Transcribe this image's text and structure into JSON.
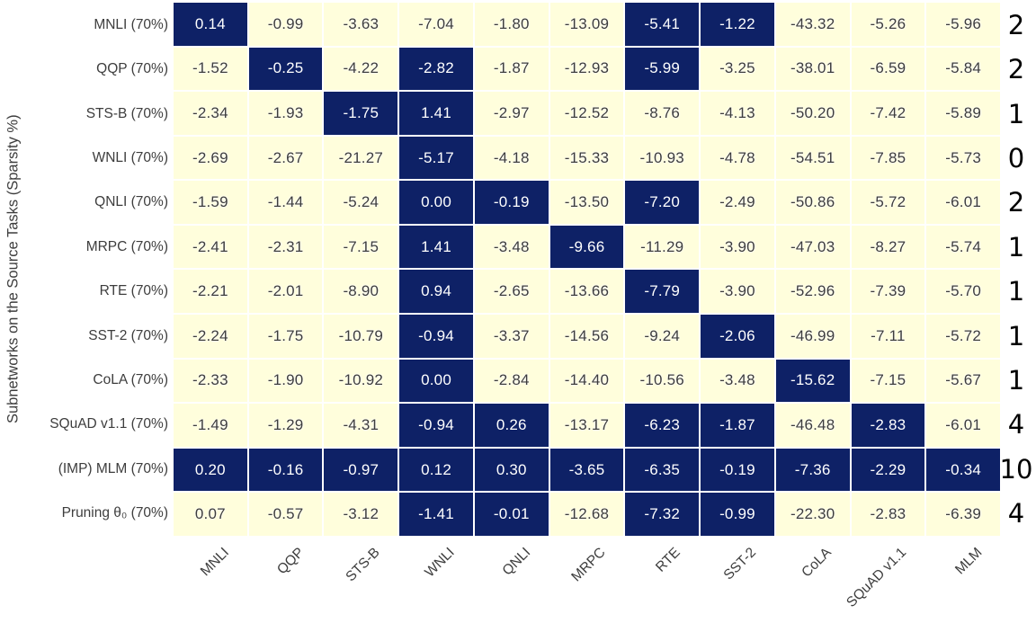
{
  "chart_data": {
    "type": "heatmap",
    "title": "",
    "xlabel": "",
    "ylabel": "Subnetworks on the Source Tasks (Sparsity %)",
    "legend_position": "none",
    "columns": [
      "MNLI",
      "QQP",
      "STS-B",
      "WNLI",
      "QNLI",
      "MRPC",
      "RTE",
      "SST-2",
      "CoLA",
      "SQuAD v1.1",
      "MLM"
    ],
    "rows": [
      "MNLI (70%)",
      "QQP (70%)",
      "STS-B (70%)",
      "WNLI (70%)",
      "QNLI (70%)",
      "MRPC (70%)",
      "RTE (70%)",
      "SST-2 (70%)",
      "CoLA (70%)",
      "SQuAD v1.1 (70%)",
      "(IMP) MLM (70%)",
      "Pruning θ₀ (70%)"
    ],
    "values": [
      [
        "0.14",
        "-0.99",
        "-3.63",
        "-7.04",
        "-1.80",
        "-13.09",
        "-5.41",
        "-1.22",
        "-43.32",
        "-5.26",
        "-5.96"
      ],
      [
        "-1.52",
        "-0.25",
        "-4.22",
        "-2.82",
        "-1.87",
        "-12.93",
        "-5.99",
        "-3.25",
        "-38.01",
        "-6.59",
        "-5.84"
      ],
      [
        "-2.34",
        "-1.93",
        "-1.75",
        "1.41",
        "-2.97",
        "-12.52",
        "-8.76",
        "-4.13",
        "-50.20",
        "-7.42",
        "-5.89"
      ],
      [
        "-2.69",
        "-2.67",
        "-21.27",
        "-5.17",
        "-4.18",
        "-15.33",
        "-10.93",
        "-4.78",
        "-54.51",
        "-7.85",
        "-5.73"
      ],
      [
        "-1.59",
        "-1.44",
        "-5.24",
        "0.00",
        "-0.19",
        "-13.50",
        "-7.20",
        "-2.49",
        "-50.86",
        "-5.72",
        "-6.01"
      ],
      [
        "-2.41",
        "-2.31",
        "-7.15",
        "1.41",
        "-3.48",
        "-9.66",
        "-11.29",
        "-3.90",
        "-47.03",
        "-8.27",
        "-5.74"
      ],
      [
        "-2.21",
        "-2.01",
        "-8.90",
        "0.94",
        "-2.65",
        "-13.66",
        "-7.79",
        "-3.90",
        "-52.96",
        "-7.39",
        "-5.70"
      ],
      [
        "-2.24",
        "-1.75",
        "-10.79",
        "-0.94",
        "-3.37",
        "-14.56",
        "-9.24",
        "-2.06",
        "-46.99",
        "-7.11",
        "-5.72"
      ],
      [
        "-2.33",
        "-1.90",
        "-10.92",
        "0.00",
        "-2.84",
        "-14.40",
        "-10.56",
        "-3.48",
        "-15.62",
        "-7.15",
        "-5.67"
      ],
      [
        "-1.49",
        "-1.29",
        "-4.31",
        "-0.94",
        "0.26",
        "-13.17",
        "-6.23",
        "-1.87",
        "-46.48",
        "-2.83",
        "-6.01"
      ],
      [
        "0.20",
        "-0.16",
        "-0.97",
        "0.12",
        "0.30",
        "-3.65",
        "-6.35",
        "-0.19",
        "-7.36",
        "-2.29",
        "-0.34"
      ],
      [
        "0.07",
        "-0.57",
        "-3.12",
        "-1.41",
        "-0.01",
        "-12.68",
        "-7.32",
        "-0.99",
        "-22.30",
        "-2.83",
        "-6.39"
      ]
    ],
    "highlight_mask": [
      [
        1,
        0,
        0,
        0,
        0,
        0,
        1,
        1,
        0,
        0,
        0
      ],
      [
        0,
        1,
        0,
        1,
        0,
        0,
        1,
        0,
        0,
        0,
        0
      ],
      [
        0,
        0,
        1,
        1,
        0,
        0,
        0,
        0,
        0,
        0,
        0
      ],
      [
        0,
        0,
        0,
        1,
        0,
        0,
        0,
        0,
        0,
        0,
        0
      ],
      [
        0,
        0,
        0,
        1,
        1,
        0,
        1,
        0,
        0,
        0,
        0
      ],
      [
        0,
        0,
        0,
        1,
        0,
        1,
        0,
        0,
        0,
        0,
        0
      ],
      [
        0,
        0,
        0,
        1,
        0,
        0,
        1,
        0,
        0,
        0,
        0
      ],
      [
        0,
        0,
        0,
        1,
        0,
        0,
        0,
        1,
        0,
        0,
        0
      ],
      [
        0,
        0,
        0,
        1,
        0,
        0,
        0,
        0,
        1,
        0,
        0
      ],
      [
        0,
        0,
        0,
        1,
        1,
        0,
        1,
        1,
        0,
        1,
        0
      ],
      [
        1,
        1,
        1,
        1,
        1,
        1,
        1,
        1,
        1,
        1,
        1
      ],
      [
        0,
        0,
        0,
        1,
        1,
        0,
        1,
        1,
        0,
        0,
        0
      ]
    ],
    "row_counts": [
      "2",
      "2",
      "1",
      "0",
      "2",
      "1",
      "1",
      "1",
      "1",
      "4",
      "10",
      "4"
    ],
    "colors": {
      "cell_light": "#fffedc",
      "cell_dark": "#0e2166",
      "text_on_light": "#3d3d3d",
      "text_on_dark": "#ffffff",
      "tick_label": "#3d3d3d",
      "count_text": "#000000",
      "grid_gap": "#ffffff"
    }
  }
}
